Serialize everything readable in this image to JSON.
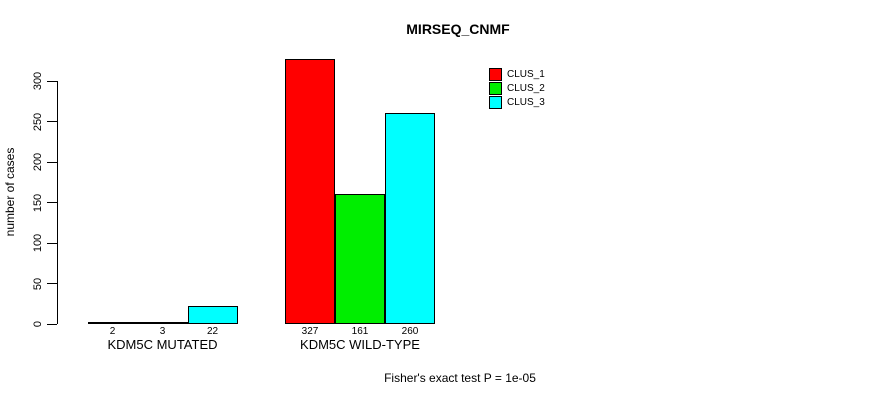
{
  "chart_data": {
    "type": "bar",
    "title": "MIRSEQ_CNMF",
    "ylabel": "number of cases",
    "xlabel": "",
    "yticks": [
      0,
      50,
      100,
      150,
      200,
      250,
      300
    ],
    "ylim": [
      0,
      330
    ],
    "grid": false,
    "legend_position": "top-right",
    "categories": [
      "KDM5C MUTATED",
      "KDM5C WILD-TYPE"
    ],
    "series": [
      {
        "name": "CLUS_1",
        "color": "#FF0000",
        "values": [
          2,
          327
        ]
      },
      {
        "name": "CLUS_2",
        "color": "#00EE00",
        "values": [
          3,
          161
        ]
      },
      {
        "name": "CLUS_3",
        "color": "#00FFFF",
        "values": [
          22,
          260
        ]
      }
    ],
    "groups": [
      {
        "label": "KDM5C MUTATED",
        "values": [
          2,
          3,
          22
        ]
      },
      {
        "label": "KDM5C WILD-TYPE",
        "values": [
          327,
          161,
          260
        ]
      }
    ],
    "bar_value_labels": [
      2,
      3,
      22,
      327,
      161,
      260
    ],
    "caption": "Fisher's exact test P = 1e-05"
  }
}
